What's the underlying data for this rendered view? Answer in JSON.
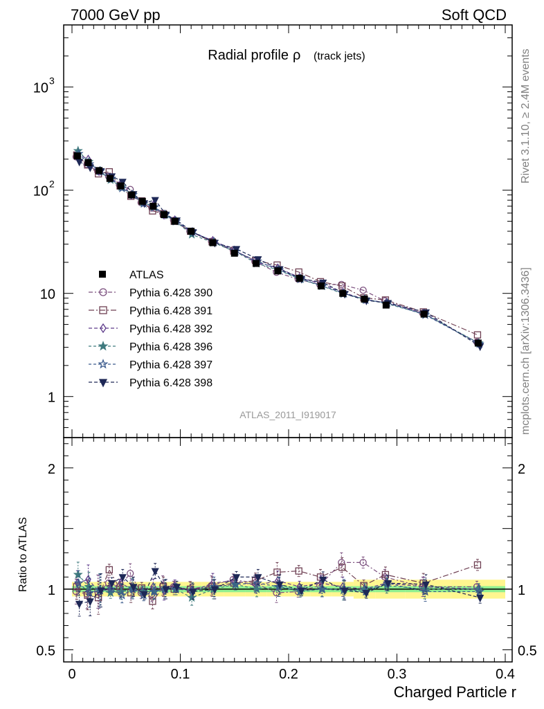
{
  "header": {
    "left": "7000 GeV pp",
    "right": "Soft QCD"
  },
  "side": {
    "rivet": "Rivet 3.1.10, ≥ 2.4M events",
    "mcplots": "mcplots.cern.ch [arXiv:1306.3436]"
  },
  "chart_data": {
    "type": "line",
    "title": "Radial profile",
    "title_symbol": "ρ",
    "title_suffix": "(track jets)",
    "analysis_id": "ATLAS_2011_I919017",
    "xlabel": "Charged Particle r",
    "ratio_ylabel": "Ratio to ATLAS",
    "xlim": [
      0,
      0.4
    ],
    "ylim_main": [
      0.4,
      4000
    ],
    "yscale_main": "log",
    "ylim_ratio": [
      0.4,
      2.25
    ],
    "x_ticks": [
      "0",
      "0.1",
      "0.2",
      "0.3",
      "0.4"
    ],
    "main_y_ticks": [
      {
        "value": 1000,
        "base": "10",
        "exp": "3"
      },
      {
        "value": 100,
        "base": "10",
        "exp": "2"
      },
      {
        "value": 10,
        "base": "10",
        "exp": ""
      },
      {
        "value": 1,
        "base": "1",
        "exp": ""
      }
    ],
    "ratio_y_ticks": [
      {
        "value": 2,
        "label": "2"
      },
      {
        "value": 1,
        "label": "1"
      },
      {
        "value": 0.5,
        "label": "0.5"
      }
    ],
    "legend_position": "left-middle",
    "x": [
      0.005,
      0.015,
      0.025,
      0.035,
      0.045,
      0.055,
      0.065,
      0.075,
      0.085,
      0.095,
      0.11,
      0.13,
      0.15,
      0.17,
      0.19,
      0.21,
      0.23,
      0.25,
      0.27,
      0.29,
      0.325,
      0.375
    ],
    "data": {
      "name": "ATLAS",
      "values": [
        215,
        185,
        155,
        130,
        110,
        90,
        78,
        70,
        58,
        50,
        40,
        31,
        24.5,
        19.5,
        16.5,
        14,
        11.8,
        10,
        8.8,
        7.7,
        6.3,
        3.3
      ],
      "band_inner": 0.025,
      "band_outer": 0.06
    },
    "series": [
      {
        "name": "Pythia 6.428 390",
        "color": "#7b4f7e",
        "marker": "circle-open",
        "dash": "6,3,2,3",
        "ratio": [
          0.98,
          0.96,
          0.98,
          1.05,
          1.02,
          1.13,
          0.97,
          0.96,
          1.03,
          1.02,
          1.0,
          1.03,
          1.08,
          1.05,
          0.97,
          0.98,
          1.03,
          1.22,
          1.22,
          1.1,
          1.02,
          1.02
        ]
      },
      {
        "name": "Pythia 6.428 391",
        "color": "#6e3f52",
        "marker": "square-open",
        "dash": "8,3,2,3",
        "ratio": [
          1.02,
          0.95,
          0.93,
          1.16,
          1.0,
          0.97,
          1.01,
          0.9,
          1.02,
          1.0,
          1.0,
          1.02,
          1.05,
          1.07,
          1.14,
          1.15,
          1.1,
          1.18,
          1.03,
          1.12,
          1.05,
          1.2
        ]
      },
      {
        "name": "Pythia 6.428 392",
        "color": "#5d3a8a",
        "marker": "diamond-open",
        "dash": "5,3",
        "ratio": [
          1.05,
          1.08,
          0.98,
          1.0,
          1.05,
          1.0,
          0.98,
          1.02,
          0.99,
          1.03,
          0.98,
          1.05,
          1.07,
          1.03,
          1.07,
          1.02,
          1.05,
          1.02,
          1.0,
          1.05,
          1.02,
          1.0
        ]
      },
      {
        "name": "Pythia 6.428 396",
        "color": "#3f7a7e",
        "marker": "star-filled",
        "dash": "4,3",
        "ratio": [
          1.12,
          1.02,
          0.99,
          0.97,
          0.98,
          1.01,
          0.98,
          0.98,
          1.0,
          1.0,
          0.93,
          1.0,
          1.04,
          1.0,
          1.02,
          0.98,
          1.0,
          0.99,
          1.0,
          1.03,
          1.0,
          1.0
        ]
      },
      {
        "name": "Pythia 6.428 397",
        "color": "#3a5a8c",
        "marker": "star-open",
        "dash": "4,3",
        "ratio": [
          1.05,
          0.97,
          0.99,
          1.0,
          0.95,
          1.0,
          0.95,
          0.98,
          1.0,
          1.0,
          0.99,
          1.02,
          1.04,
          1.05,
          1.02,
          0.99,
          1.0,
          1.0,
          0.98,
          1.05,
          0.98,
          0.98
        ]
      },
      {
        "name": "Pythia 6.428 398",
        "color": "#1e2856",
        "marker": "triangle-down-filled",
        "dash": "5,3",
        "ratio": [
          0.88,
          0.9,
          0.99,
          1.05,
          1.1,
          1.02,
          0.96,
          1.15,
          1.0,
          1.02,
          0.98,
          1.0,
          1.1,
          1.1,
          1.04,
          0.99,
          1.08,
          0.99,
          0.97,
          1.05,
          1.04,
          0.93
        ]
      }
    ]
  }
}
